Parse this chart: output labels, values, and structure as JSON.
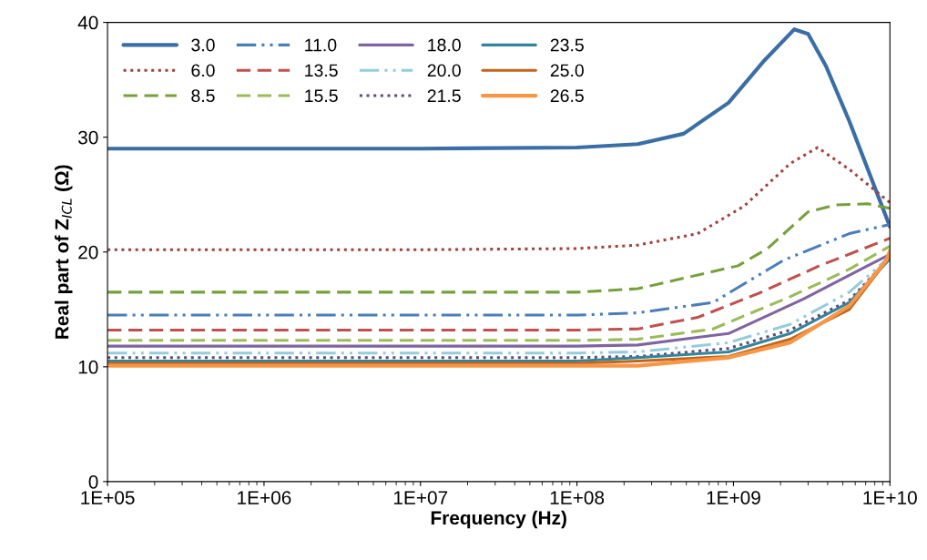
{
  "chart_data": {
    "type": "line",
    "xlabel": "Frequency (Hz)",
    "ylabel": "Real part of Z$_{ICL}$ (Ω)",
    "log": "x",
    "xlim": [
      100000,
      10000000000
    ],
    "ylim": [
      0,
      40
    ],
    "xticks": [
      {
        "value": 100000,
        "label": "1E+05"
      },
      {
        "value": 1000000,
        "label": "1E+06"
      },
      {
        "value": 10000000,
        "label": "1E+07"
      },
      {
        "value": 100000000,
        "label": "1E+08"
      },
      {
        "value": 1000000000,
        "label": "1E+09"
      },
      {
        "value": 10000000000,
        "label": "1E+10"
      }
    ],
    "yticks": [
      0,
      10,
      20,
      30,
      40
    ],
    "grid": false,
    "legend": "top left",
    "marker": "none",
    "series": [
      {
        "name": "3.0",
        "color": "#3a6ea5",
        "line_style": "solid",
        "x": [
          100000,
          10000000,
          100000000,
          245000000,
          480000000,
          930000000,
          1580000000,
          2450000000,
          3000000000,
          3900000000,
          5500000000,
          10000000000
        ],
        "values": [
          29.0,
          29.0,
          29.1,
          29.4,
          30.3,
          33.0,
          36.7,
          39.4,
          39.0,
          36.2,
          31.4,
          22.2
        ]
      },
      {
        "name": "6.0",
        "color": "#a0413c",
        "line_style": "dotted",
        "x": [
          100000,
          10000000,
          100000000,
          245000000,
          590000000,
          1170000000,
          2300000000,
          3450000000,
          5500000000,
          10000000000
        ],
        "values": [
          20.2,
          20.2,
          20.3,
          20.6,
          21.6,
          24.0,
          27.7,
          29.1,
          27.2,
          24.3
        ]
      },
      {
        "name": "8.5",
        "color": "#77a03c",
        "line_style": "dashed",
        "x": [
          100000,
          10000000,
          100000000,
          245000000,
          1070000000,
          1650000000,
          3000000000,
          4500000000,
          7200000000,
          10000000000
        ],
        "values": [
          16.5,
          16.5,
          16.5,
          16.8,
          18.8,
          20.3,
          23.5,
          24.1,
          24.2,
          23.8
        ]
      },
      {
        "name": "11.0",
        "color": "#4a7ebb",
        "line_style": "dashdot",
        "x": [
          100000,
          10000000,
          100000000,
          245000000,
          740000000,
          2100000000,
          5500000000,
          10000000000
        ],
        "values": [
          14.5,
          14.5,
          14.5,
          14.7,
          15.6,
          19.3,
          21.6,
          22.4
        ]
      },
      {
        "name": "13.5",
        "color": "#c0504d",
        "line_style": "dashed",
        "x": [
          100000,
          10000000,
          100000000,
          245000000,
          590000000,
          1450000000,
          3550000000,
          10000000000
        ],
        "values": [
          13.2,
          13.2,
          13.2,
          13.3,
          14.3,
          16.4,
          18.8,
          21.2
        ]
      },
      {
        "name": "15.5",
        "color": "#9bbb59",
        "line_style": "dashed",
        "x": [
          100000,
          10000000,
          100000000,
          245000000,
          740000000,
          2300000000,
          5500000000,
          10000000000
        ],
        "values": [
          12.3,
          12.3,
          12.3,
          12.4,
          13.3,
          16.1,
          18.5,
          20.5
        ]
      },
      {
        "name": "18.0",
        "color": "#8064a2",
        "line_style": "solid",
        "x": [
          100000,
          10000000,
          100000000,
          245000000,
          930000000,
          2800000000,
          7200000000,
          10000000000
        ],
        "values": [
          11.8,
          11.8,
          11.8,
          11.9,
          12.9,
          15.9,
          18.8,
          19.8
        ]
      },
      {
        "name": "20.0",
        "color": "#93cddd",
        "line_style": "dashdot",
        "x": [
          100000,
          10000000,
          100000000,
          245000000,
          930000000,
          2300000000,
          5500000000,
          10000000000
        ],
        "values": [
          11.2,
          11.2,
          11.2,
          11.3,
          12.1,
          13.7,
          16.5,
          19.6
        ]
      },
      {
        "name": "21.5",
        "color": "#604a7b",
        "line_style": "dotted",
        "x": [
          100000,
          10000000,
          100000000,
          245000000,
          930000000,
          2300000000,
          5500000000,
          10000000000
        ],
        "values": [
          10.8,
          10.8,
          10.8,
          10.9,
          11.6,
          13.2,
          15.8,
          19.5
        ]
      },
      {
        "name": "23.5",
        "color": "#31859c",
        "line_style": "solid",
        "x": [
          100000,
          10000000,
          100000000,
          245000000,
          930000000,
          2300000000,
          5500000000,
          10000000000
        ],
        "values": [
          10.5,
          10.5,
          10.5,
          10.8,
          11.3,
          12.9,
          15.6,
          19.4
        ]
      },
      {
        "name": "25.0",
        "color": "#c0661c",
        "line_style": "solid",
        "x": [
          100000,
          10000000,
          100000000,
          245000000,
          930000000,
          2300000000,
          5500000000,
          10000000000
        ],
        "values": [
          10.3,
          10.3,
          10.3,
          10.5,
          10.9,
          12.4,
          15.0,
          19.6
        ]
      },
      {
        "name": "26.5",
        "color": "#f79646",
        "line_style": "solid",
        "x": [
          100000,
          10000000,
          100000000,
          245000000,
          930000000,
          2300000000,
          5500000000,
          9500000000,
          10000000000
        ],
        "values": [
          10.1,
          10.1,
          10.1,
          10.1,
          10.8,
          12.1,
          15.3,
          19.3,
          20.1
        ]
      }
    ]
  }
}
